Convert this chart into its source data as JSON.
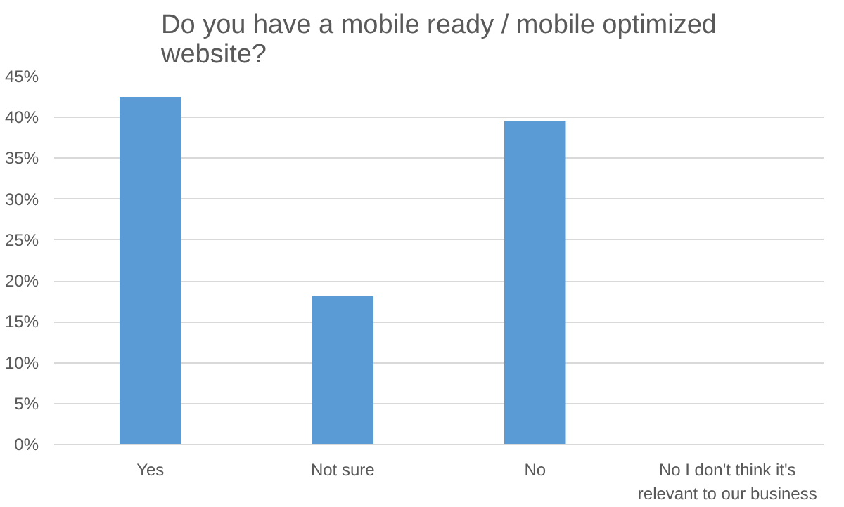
{
  "chart_data": {
    "type": "bar",
    "title": "Do you have a mobile ready / mobile optimized website?",
    "categories": [
      "Yes",
      "Not sure",
      "No",
      "No I don't think it's relevant to our business"
    ],
    "values": [
      0.425,
      0.182,
      0.395,
      0
    ],
    "color": "#5b9bd5",
    "ylim": [
      0,
      0.45
    ],
    "yticks": [
      {
        "value": 0,
        "label": "0%"
      },
      {
        "value": 0.05,
        "label": "5%"
      },
      {
        "value": 0.1,
        "label": "10%"
      },
      {
        "value": 0.15,
        "label": "15%"
      },
      {
        "value": 0.2,
        "label": "20%"
      },
      {
        "value": 0.25,
        "label": "25%"
      },
      {
        "value": 0.3,
        "label": "30%"
      },
      {
        "value": 0.35,
        "label": "35%"
      },
      {
        "value": 0.4,
        "label": "40%"
      },
      {
        "value": 0.45,
        "label": "45%"
      }
    ],
    "grid": "y"
  }
}
